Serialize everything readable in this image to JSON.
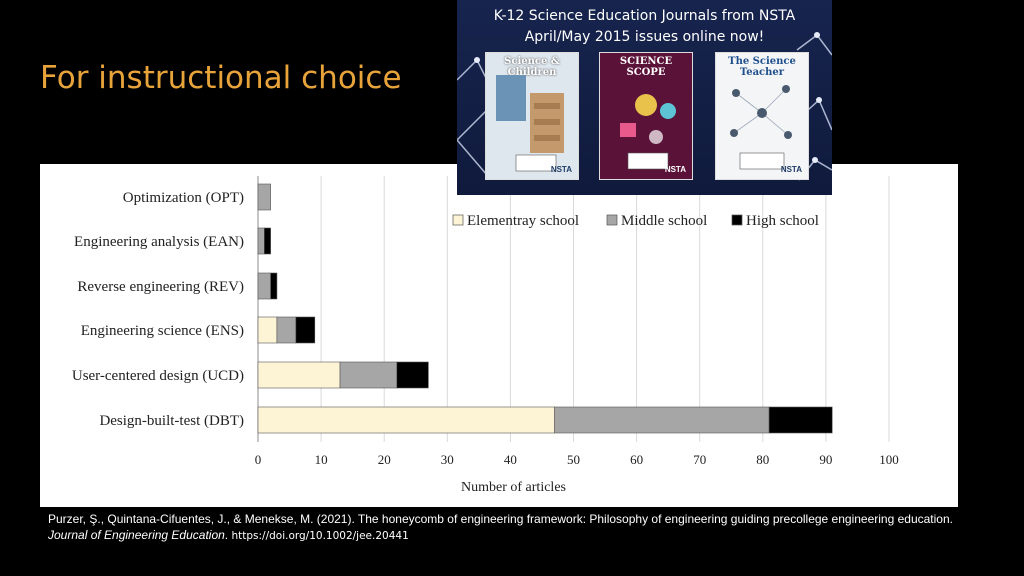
{
  "slide": {
    "title": "For instructional choice"
  },
  "ad": {
    "line1": "K-12 Science Education Journals from NSTA",
    "line2": "April/May 2015 issues online now!",
    "journals": [
      {
        "name": "Science & Children",
        "badge": "NSTA"
      },
      {
        "name": "SCIENCE SCOPE",
        "badge": "NSTA"
      },
      {
        "name": "The Science Teacher",
        "badge": "NSTA"
      }
    ]
  },
  "citation": {
    "authors": "Purzer, Ş., Quintana-Cifuentes, J., & Menekse, M. (2021). The honeycomb of engineering framework: Philosophy of engineering guiding precollege engineering education. ",
    "journal": "Journal of Engineering Education",
    "sep": ". ",
    "doi": "https://doi.org/10.1002/jee.20441"
  },
  "chart_data": {
    "type": "bar",
    "orientation": "horizontal",
    "stacked": true,
    "categories": [
      "Optimization (OPT)",
      "Engineering analysis (EAN)",
      "Reverse engineering (REV)",
      "Engineering science (ENS)",
      "User-centered design (UCD)",
      "Design-built-test (DBT)"
    ],
    "series": [
      {
        "name": "Elementray school",
        "color": "#fdf4d6",
        "values": [
          0,
          0,
          0,
          3,
          13,
          47
        ]
      },
      {
        "name": "Middle school",
        "color": "#a6a6a6",
        "values": [
          2,
          1,
          2,
          3,
          9,
          34
        ]
      },
      {
        "name": "High school",
        "color": "#000000",
        "values": [
          0,
          1,
          1,
          3,
          5,
          10
        ]
      }
    ],
    "xticks": [
      0,
      10,
      20,
      30,
      40,
      50,
      60,
      70,
      80,
      90,
      100
    ],
    "xlim": [
      0,
      100
    ],
    "xlabel": "Number of articles",
    "grid": "vertical",
    "legend": "top-right"
  }
}
